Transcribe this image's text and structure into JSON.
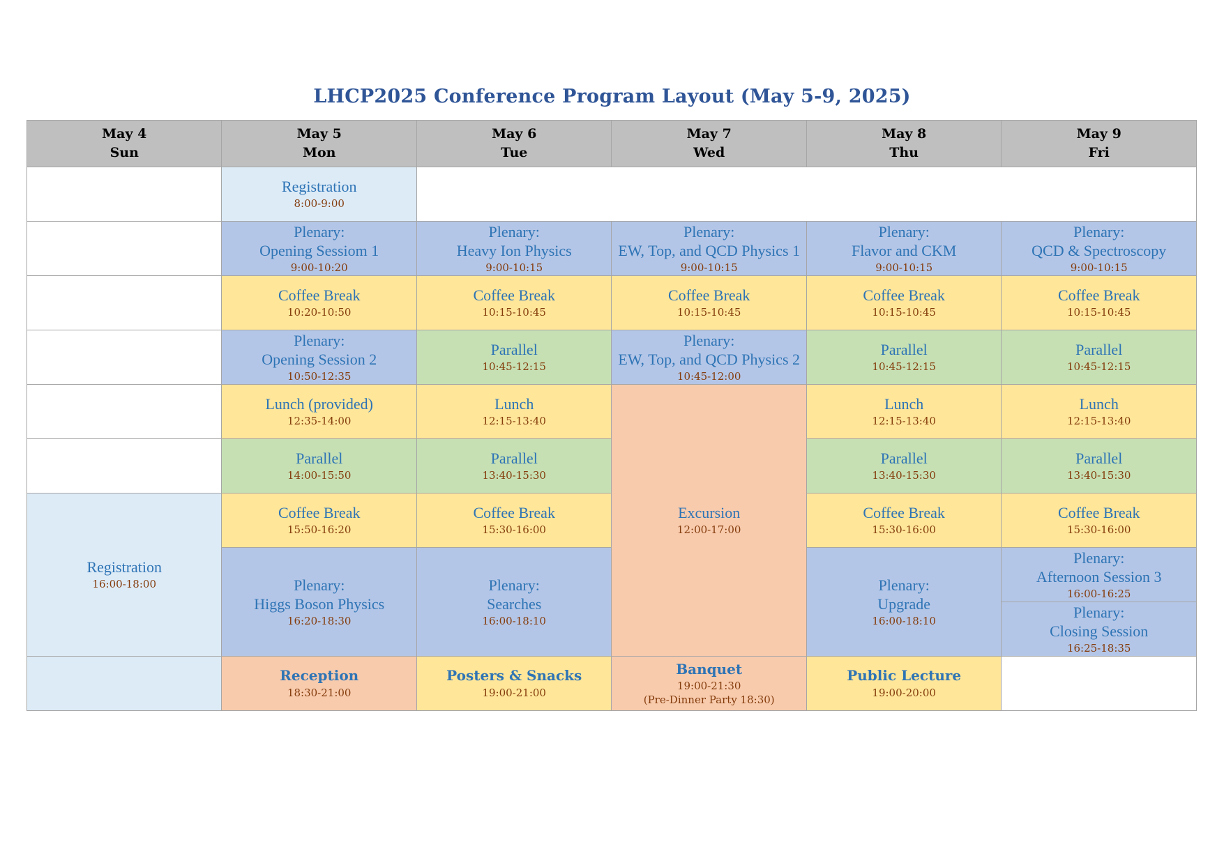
{
  "title": "LHCP2025 Conference Program Layout (May 5-9, 2025)",
  "days": [
    {
      "date": "May 4",
      "weekday": "Sun"
    },
    {
      "date": "May 5",
      "weekday": "Mon"
    },
    {
      "date": "May 6",
      "weekday": "Tue"
    },
    {
      "date": "May 7",
      "weekday": "Wed"
    },
    {
      "date": "May 8",
      "weekday": "Thu"
    },
    {
      "date": "May 9",
      "weekday": "Fri"
    }
  ],
  "colors": {
    "header": "#bfbfbf",
    "registration": "#ddebf7",
    "plenary": "#b4c6e7",
    "break_meal": "#ffe699",
    "parallel": "#c6e0b4",
    "social": "#f8cbad",
    "title_text": "#2f5597",
    "event_text": "#2e74b5",
    "time_text": "#843c0c"
  },
  "sessions": {
    "mon_registration": {
      "title": "Registration",
      "time": "8:00-9:00"
    },
    "mon_plenary1": {
      "line1": "Plenary:",
      "line2": "Opening Sessiom 1",
      "time": "9:00-10:20"
    },
    "tue_plenary1": {
      "line1": "Plenary:",
      "line2": "Heavy Ion Physics",
      "time": "9:00-10:15"
    },
    "wed_plenary1": {
      "line1": "Plenary:",
      "line2": "EW, Top, and QCD Physics 1",
      "time": "9:00-10:15"
    },
    "thu_plenary1": {
      "line1": "Plenary:",
      "line2": "Flavor and CKM",
      "time": "9:00-10:15"
    },
    "fri_plenary1": {
      "line1": "Plenary:",
      "line2": "QCD & Spectroscopy",
      "time": "9:00-10:15"
    },
    "mon_coffee1": {
      "title": "Coffee Break",
      "time": "10:20-10:50"
    },
    "tue_coffee1": {
      "title": "Coffee Break",
      "time": "10:15-10:45"
    },
    "wed_coffee1": {
      "title": "Coffee Break",
      "time": "10:15-10:45"
    },
    "thu_coffee1": {
      "title": "Coffee Break",
      "time": "10:15-10:45"
    },
    "fri_coffee1": {
      "title": "Coffee Break",
      "time": "10:15-10:45"
    },
    "mon_plenary2": {
      "line1": "Plenary:",
      "line2": "Opening Session 2",
      "time": "10:50-12:35"
    },
    "tue_parallel1": {
      "title": "Parallel",
      "time": "10:45-12:15"
    },
    "wed_plenary2": {
      "line1": "Plenary:",
      "line2": "EW, Top, and QCD Physics 2",
      "time": "10:45-12:00"
    },
    "thu_parallel1": {
      "title": "Parallel",
      "time": "10:45-12:15"
    },
    "fri_parallel1": {
      "title": "Parallel",
      "time": "10:45-12:15"
    },
    "mon_lunch": {
      "title": "Lunch (provided)",
      "time": "12:35-14:00"
    },
    "tue_lunch": {
      "title": "Lunch",
      "time": "12:15-13:40"
    },
    "wed_excursion": {
      "title": "Excursion",
      "time": "12:00-17:00"
    },
    "thu_lunch": {
      "title": "Lunch",
      "time": "12:15-13:40"
    },
    "fri_lunch": {
      "title": "Lunch",
      "time": "12:15-13:40"
    },
    "mon_parallel": {
      "title": "Parallel",
      "time": "14:00-15:50"
    },
    "tue_parallel2": {
      "title": "Parallel",
      "time": "13:40-15:30"
    },
    "thu_parallel2": {
      "title": "Parallel",
      "time": "13:40-15:30"
    },
    "fri_parallel2": {
      "title": "Parallel",
      "time": "13:40-15:30"
    },
    "sun_registration": {
      "title": "Registration",
      "time": "16:00-18:00"
    },
    "mon_coffee2": {
      "title": "Coffee Break",
      "time": "15:50-16:20"
    },
    "tue_coffee2": {
      "title": "Coffee Break",
      "time": "15:30-16:00"
    },
    "thu_coffee2": {
      "title": "Coffee Break",
      "time": "15:30-16:00"
    },
    "fri_coffee2": {
      "title": "Coffee Break",
      "time": "15:30-16:00"
    },
    "mon_plenary3": {
      "line1": "Plenary:",
      "line2": "Higgs Boson Physics",
      "time": "16:20-18:30"
    },
    "tue_plenary3": {
      "line1": "Plenary:",
      "line2": "Searches",
      "time": "16:00-18:10"
    },
    "thu_plenary3": {
      "line1": "Plenary:",
      "line2": "Upgrade",
      "time": "16:00-18:10"
    },
    "fri_plenary3": {
      "line1": "Plenary:",
      "line2": "Afternoon Session 3",
      "time": "16:00-16:25"
    },
    "fri_closing": {
      "line1": "Plenary:",
      "line2": "Closing Session",
      "time": "16:25-18:35"
    },
    "mon_reception": {
      "title": "Reception",
      "time": "18:30-21:00"
    },
    "tue_posters": {
      "title": "Posters & Snacks",
      "time": "19:00-21:00"
    },
    "wed_banquet": {
      "title": "Banquet",
      "time": "19:00-21:30",
      "note": "(Pre-Dinner Party 18:30)"
    },
    "thu_lecture": {
      "title": "Public Lecture",
      "time": "19:00-20:00"
    }
  }
}
